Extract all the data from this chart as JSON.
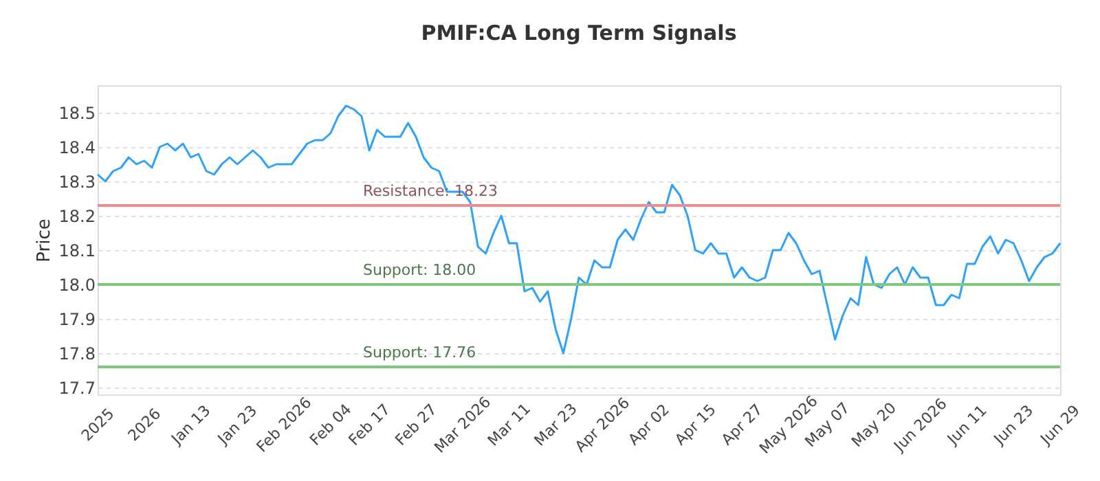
{
  "chart_data": {
    "type": "line",
    "title": "PMIF:CA Long Term Signals",
    "ylabel": "Price",
    "categories": [
      "2025",
      null,
      null,
      null,
      null,
      null,
      "2026",
      null,
      null,
      null,
      null,
      null,
      "Jan 13",
      null,
      null,
      null,
      null,
      null,
      "Jan 23",
      null,
      null,
      null,
      null,
      null,
      "Feb 2026",
      null,
      null,
      null,
      null,
      null,
      "Feb 04",
      null,
      null,
      null,
      null,
      "Feb 17",
      null,
      null,
      null,
      null,
      null,
      "Feb 27",
      null,
      null,
      null,
      null,
      null,
      "Mar 2026",
      null,
      null,
      null,
      null,
      null,
      "Mar 11",
      null,
      null,
      null,
      null,
      null,
      "Mar 23",
      null,
      null,
      null,
      null,
      null,
      "Apr 2026",
      null,
      null,
      null,
      null,
      null,
      "Apr 02",
      null,
      null,
      null,
      null,
      null,
      "Apr 15",
      null,
      null,
      null,
      null,
      null,
      "Apr 27",
      null,
      null,
      null,
      null,
      null,
      "May 2026",
      null,
      null,
      null,
      null,
      "May 07",
      null,
      null,
      null,
      null,
      null,
      "May 20",
      null,
      null,
      null,
      null,
      null,
      "Jun 2026",
      null,
      null,
      null,
      null,
      null,
      "Jun 11",
      null,
      null,
      null,
      null,
      null,
      "Jun 23",
      null,
      null,
      null,
      null,
      null,
      "Jun 29"
    ],
    "series": [
      {
        "color": "#2ea1f8",
        "values": [
          18.32,
          18.3,
          18.33,
          18.34,
          18.37,
          18.35,
          18.36,
          18.34,
          18.4,
          18.41,
          18.39,
          18.41,
          18.37,
          18.38,
          18.33,
          18.32,
          18.35,
          18.37,
          18.35,
          18.37,
          18.39,
          18.37,
          18.34,
          18.35,
          18.35,
          18.35,
          18.38,
          18.41,
          18.42,
          18.42,
          18.44,
          18.49,
          18.52,
          18.51,
          18.49,
          18.39,
          18.45,
          18.43,
          18.43,
          18.43,
          18.47,
          18.43,
          18.37,
          18.34,
          18.33,
          18.27,
          18.27,
          18.27,
          18.24,
          18.11,
          18.09,
          18.15,
          18.2,
          18.12,
          18.12,
          17.98,
          17.99,
          17.95,
          17.98,
          17.87,
          17.8,
          17.9,
          18.02,
          18.0,
          18.07,
          18.05,
          18.05,
          18.13,
          18.16,
          18.13,
          18.19,
          18.24,
          18.21,
          18.21,
          18.29,
          18.26,
          18.2,
          18.1,
          18.09,
          18.12,
          18.09,
          18.09,
          18.02,
          18.05,
          18.02,
          18.01,
          18.02,
          18.1,
          18.1,
          18.15,
          18.12,
          18.07,
          18.03,
          18.04,
          17.94,
          17.84,
          17.91,
          17.96,
          17.94,
          18.08,
          18.0,
          17.99,
          18.03,
          18.05,
          18.0,
          18.05,
          18.02,
          18.02,
          17.94,
          17.94,
          17.97,
          17.96,
          18.06,
          18.06,
          18.11,
          18.14,
          18.09,
          18.13,
          18.12,
          18.07,
          18.01,
          18.05,
          18.08,
          18.09,
          18.12
        ]
      }
    ],
    "ylim": [
      17.68,
      18.58
    ],
    "yticks": [
      17.7,
      17.8,
      17.9,
      {
        "value": 18.0,
        "label": "18.0"
      },
      18.1,
      18.2,
      18.3,
      18.4,
      18.5
    ],
    "grid": "y",
    "marker": "none",
    "line_style": "solid",
    "ref_lines": [
      {
        "axis": "y",
        "value": 18.23,
        "label": "Resistance: 18.23",
        "color": "#f08c8c"
      },
      {
        "axis": "y",
        "value": 18.0,
        "label": "Support: 18.00",
        "color": "#7fc97f"
      },
      {
        "axis": "y",
        "value": 17.76,
        "label": "Support: 17.76",
        "color": "#7fc97f"
      }
    ]
  }
}
